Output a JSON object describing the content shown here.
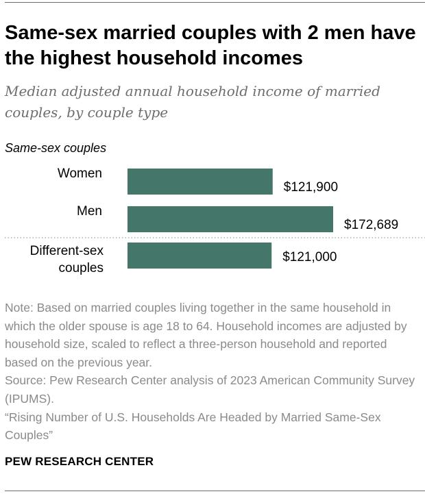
{
  "header": {
    "title": "Same-sex married couples with 2 men have the highest household incomes",
    "subtitle": "Median adjusted annual household income of married couples, by couple type"
  },
  "chart_data": {
    "type": "bar",
    "orientation": "horizontal",
    "groups": [
      {
        "label": "Same-sex couples",
        "categories": [
          "Women",
          "Men"
        ],
        "values": [
          121900,
          172689
        ],
        "value_labels": [
          "$121,900",
          "$172,689"
        ]
      },
      {
        "label": "",
        "categories": [
          "Different-sex couples"
        ],
        "category_lines": [
          [
            "Different-sex",
            "couples"
          ]
        ],
        "values": [
          121000
        ],
        "value_labels": [
          "$121,000"
        ]
      }
    ],
    "bar_color": "#44776a",
    "separator": "dotted line between same-sex and different-sex groups",
    "grid": false,
    "axis_visible": false,
    "xlim": [
      0,
      172689
    ]
  },
  "footer": {
    "note": "Note: Based on married couples living together in the same household in which the older spouse is age 18 to 64. Household incomes are adjusted by household size, scaled to reflect a three-person household and reported based on the previous year.",
    "source": "Source: Pew Research Center analysis of 2023 American Community Survey (IPUMS).",
    "report": "“Rising Number of U.S. Households Are Headed by Married Same-Sex Couples”",
    "brand": "PEW RESEARCH CENTER"
  },
  "colors": {
    "bar": "#44776a",
    "title": "#000000",
    "subtitle": "#6d6d6d",
    "note": "#8a8a8a"
  }
}
